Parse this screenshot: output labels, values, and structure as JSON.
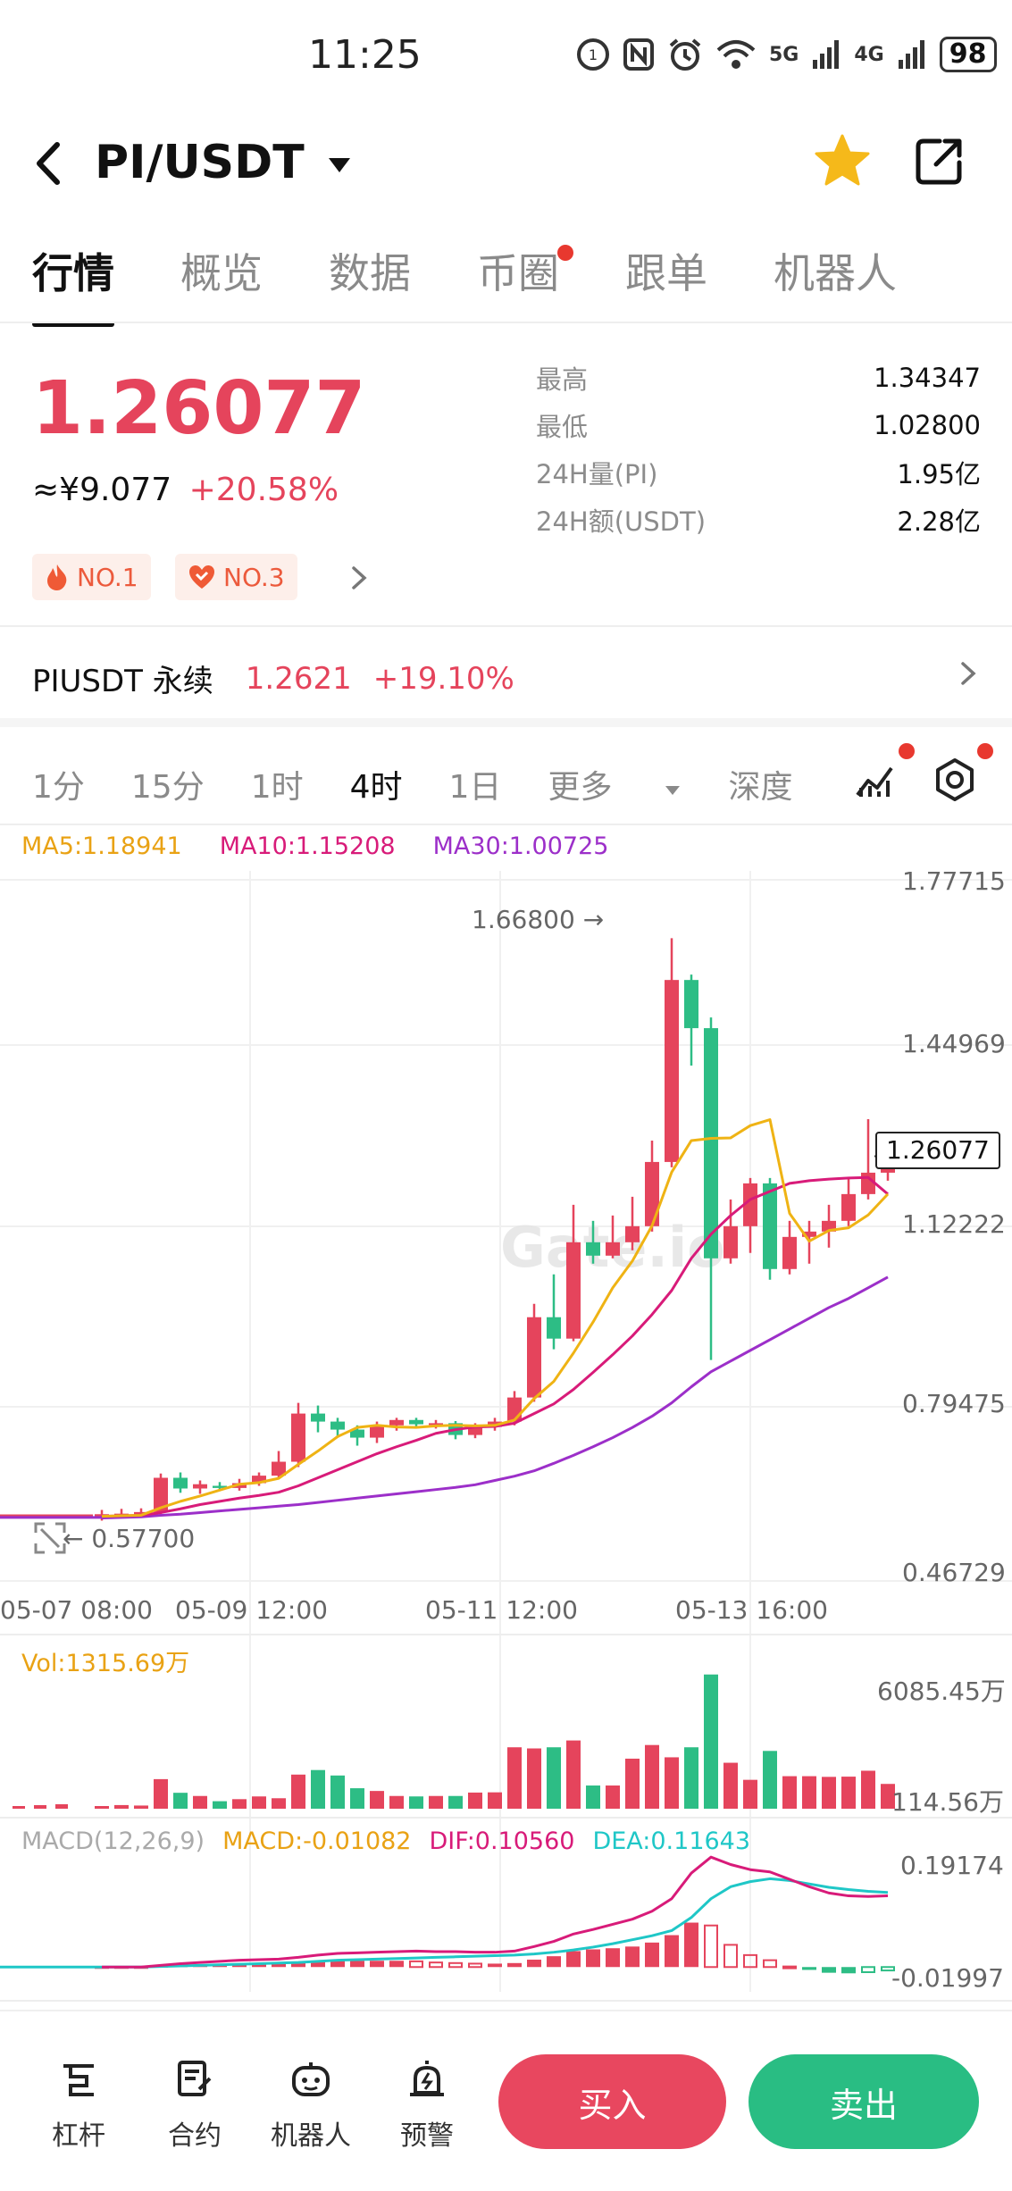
{
  "status": {
    "time": "11:25",
    "battery": "98",
    "net1": "5G",
    "net2": "4G"
  },
  "header": {
    "pair": "PI/USDT",
    "back_icon": "back-arrow-icon",
    "star_icon": "star-icon",
    "share_icon": "share-icon"
  },
  "tabs": [
    {
      "label": "行情",
      "active": true
    },
    {
      "label": "概览"
    },
    {
      "label": "数据"
    },
    {
      "label": "币圈",
      "dot": true
    },
    {
      "label": "跟单"
    },
    {
      "label": "机器人"
    }
  ],
  "ticker": {
    "last": "1.26077",
    "cny": "≈¥9.077",
    "change": "+20.58%",
    "high_label": "最高",
    "high": "1.34347",
    "low_label": "最低",
    "low": "1.02800",
    "vol_label": "24H量(PI)",
    "vol": "1.95亿",
    "amt_label": "24H额(USDT)",
    "amt": "2.28亿",
    "badge1": "NO.1",
    "badge2": "NO.3"
  },
  "perp": {
    "name": "PIUSDT 永续",
    "price": "1.2621",
    "change": "+19.10%"
  },
  "intervals": [
    "1分",
    "15分",
    "1时",
    "4时",
    "1日",
    "更多",
    "深度"
  ],
  "indicators": {
    "ma5": "MA5:1.18941",
    "ma10": "MA10:1.15208",
    "ma30": "MA30:1.00725"
  },
  "colors": {
    "up": "#e5445c",
    "down": "#2dbd85",
    "ma5": "#efb314",
    "ma10": "#d81b79",
    "ma30": "#9c2fc9",
    "dif": "#d81b79",
    "dea": "#1fc7c7"
  },
  "chart_data": {
    "type": "candlestick",
    "price_axis": [
      "1.77715",
      "1.44969",
      "1.12222",
      "0.79475",
      "0.46729"
    ],
    "ylim": [
      0.46729,
      1.77715
    ],
    "time_labels": [
      "05-07 08:00",
      "05-09 12:00",
      "05-11 12:00",
      "05-13 16:00"
    ],
    "high_mark": "1.66800 →",
    "low_mark": "← 0.57700",
    "current_price": "1.26077",
    "candles": [
      [
        0.588,
        0.592,
        0.6,
        0.58
      ],
      [
        0.59,
        0.593,
        0.602,
        0.585
      ],
      [
        0.59,
        0.596,
        0.603,
        0.586
      ],
      [
        0.596,
        0.66,
        0.668,
        0.59
      ],
      [
        0.66,
        0.64,
        0.67,
        0.632
      ],
      [
        0.64,
        0.648,
        0.655,
        0.63
      ],
      [
        0.645,
        0.641,
        0.652,
        0.635
      ],
      [
        0.641,
        0.65,
        0.658,
        0.636
      ],
      [
        0.65,
        0.664,
        0.67,
        0.645
      ],
      [
        0.664,
        0.69,
        0.71,
        0.66
      ],
      [
        0.69,
        0.78,
        0.8,
        0.68
      ],
      [
        0.78,
        0.765,
        0.795,
        0.745
      ],
      [
        0.765,
        0.75,
        0.772,
        0.735
      ],
      [
        0.75,
        0.735,
        0.758,
        0.72
      ],
      [
        0.735,
        0.758,
        0.765,
        0.725
      ],
      [
        0.758,
        0.768,
        0.772,
        0.748
      ],
      [
        0.768,
        0.76,
        0.772,
        0.752
      ],
      [
        0.76,
        0.762,
        0.768,
        0.752
      ],
      [
        0.762,
        0.74,
        0.766,
        0.732
      ],
      [
        0.74,
        0.755,
        0.762,
        0.734
      ],
      [
        0.755,
        0.765,
        0.772,
        0.748
      ],
      [
        0.765,
        0.81,
        0.822,
        0.758
      ],
      [
        0.81,
        0.96,
        0.985,
        0.802
      ],
      [
        0.96,
        0.92,
        1.04,
        0.9
      ],
      [
        0.92,
        1.1,
        1.17,
        0.915
      ],
      [
        1.1,
        1.075,
        1.14,
        1.06
      ],
      [
        1.075,
        1.1,
        1.15,
        1.07
      ],
      [
        1.1,
        1.13,
        1.185,
        1.085
      ],
      [
        1.13,
        1.25,
        1.29,
        1.12
      ],
      [
        1.25,
        1.59,
        1.668,
        1.24
      ],
      [
        1.59,
        1.5,
        1.6,
        1.43
      ],
      [
        1.5,
        1.07,
        1.52,
        0.88
      ],
      [
        1.07,
        1.13,
        1.18,
        1.06
      ],
      [
        1.13,
        1.21,
        1.22,
        1.08
      ],
      [
        1.21,
        1.05,
        1.22,
        1.03
      ],
      [
        1.05,
        1.11,
        1.14,
        1.04
      ],
      [
        1.11,
        1.12,
        1.14,
        1.06
      ],
      [
        1.12,
        1.14,
        1.17,
        1.09
      ],
      [
        1.14,
        1.19,
        1.22,
        1.13
      ],
      [
        1.19,
        1.23,
        1.33,
        1.18
      ],
      [
        1.23,
        1.261,
        1.3,
        1.215
      ]
    ],
    "ma5": [
      0.588,
      0.589,
      0.59,
      0.604,
      0.616,
      0.626,
      0.637,
      0.648,
      0.651,
      0.659,
      0.685,
      0.71,
      0.737,
      0.754,
      0.758,
      0.755,
      0.754,
      0.757,
      0.758,
      0.757,
      0.758,
      0.768,
      0.808,
      0.84,
      0.893,
      0.951,
      1.015,
      1.065,
      1.131,
      1.231,
      1.29,
      1.294,
      1.295,
      1.318,
      1.329,
      1.154,
      1.102,
      1.122,
      1.127,
      1.151,
      1.19
    ],
    "ma10": [
      0.588,
      0.589,
      0.59,
      0.595,
      0.602,
      0.61,
      0.616,
      0.622,
      0.627,
      0.633,
      0.645,
      0.66,
      0.675,
      0.69,
      0.705,
      0.718,
      0.73,
      0.743,
      0.75,
      0.755,
      0.756,
      0.762,
      0.78,
      0.798,
      0.825,
      0.857,
      0.89,
      0.925,
      0.965,
      1.01,
      1.07,
      1.115,
      1.15,
      1.18,
      1.195,
      1.21,
      1.215,
      1.218,
      1.22,
      1.221,
      1.19
    ],
    "ma30": [
      0.585,
      0.586,
      0.587,
      0.59,
      0.592,
      0.595,
      0.598,
      0.601,
      0.604,
      0.607,
      0.61,
      0.614,
      0.618,
      0.622,
      0.626,
      0.63,
      0.634,
      0.638,
      0.642,
      0.647,
      0.655,
      0.663,
      0.673,
      0.687,
      0.702,
      0.718,
      0.735,
      0.754,
      0.775,
      0.8,
      0.83,
      0.858,
      0.878,
      0.898,
      0.918,
      0.938,
      0.958,
      0.978,
      0.995,
      1.015,
      1.035
    ],
    "volume": {
      "label": "Vol:1315.69万",
      "axis": [
        "6085.45万",
        "114.56万"
      ],
      "max": 6085.45,
      "values": [
        110,
        160,
        140,
        1300,
        700,
        560,
        330,
        420,
        540,
        460,
        1500,
        1700,
        1460,
        900,
        780,
        560,
        540,
        560,
        560,
        710,
        720,
        2700,
        2650,
        2700,
        3000,
        1020,
        1020,
        2200,
        2800,
        2260,
        2700,
        5900,
        2020,
        1270,
        2540,
        1430,
        1430,
        1400,
        1410,
        1670,
        1090
      ]
    },
    "macd": {
      "label": "MACD(12,26,9)",
      "macd_text": "MACD:-0.01082",
      "dif_text": "DIF:0.10560",
      "dea_text": "DEA:0.11643",
      "axis": [
        "0.19174",
        "-0.01997"
      ],
      "ylim": [
        -0.01997,
        0.19174
      ],
      "dif": [
        0.0,
        0.0,
        0.0,
        0.003,
        0.006,
        0.008,
        0.01,
        0.012,
        0.013,
        0.014,
        0.017,
        0.021,
        0.024,
        0.025,
        0.026,
        0.027,
        0.028,
        0.027,
        0.027,
        0.026,
        0.026,
        0.028,
        0.036,
        0.045,
        0.058,
        0.066,
        0.075,
        0.084,
        0.098,
        0.12,
        0.165,
        0.193,
        0.18,
        0.171,
        0.167,
        0.154,
        0.141,
        0.13,
        0.125,
        0.124,
        0.125
      ],
      "dea": [
        0.0,
        0.0,
        0.0,
        0.001,
        0.002,
        0.003,
        0.004,
        0.005,
        0.006,
        0.007,
        0.008,
        0.01,
        0.012,
        0.013,
        0.014,
        0.015,
        0.016,
        0.017,
        0.018,
        0.019,
        0.02,
        0.021,
        0.023,
        0.026,
        0.03,
        0.035,
        0.041,
        0.048,
        0.055,
        0.064,
        0.087,
        0.12,
        0.141,
        0.15,
        0.155,
        0.152,
        0.146,
        0.14,
        0.136,
        0.133,
        0.131
      ],
      "hist": [
        0.0,
        0.0,
        0.0,
        0.002,
        0.003,
        0.004,
        0.005,
        0.006,
        0.006,
        0.006,
        0.008,
        0.01,
        0.011,
        0.011,
        0.011,
        0.011,
        0.01,
        0.008,
        0.007,
        0.006,
        0.006,
        0.007,
        0.013,
        0.019,
        0.028,
        0.031,
        0.033,
        0.036,
        0.043,
        0.056,
        0.078,
        0.073,
        0.039,
        0.021,
        0.012,
        0.001,
        -0.005,
        -0.01,
        -0.011,
        -0.009,
        -0.006
      ]
    }
  },
  "bottom": {
    "nav": [
      {
        "label": "杠杆",
        "icon": "leverage-icon"
      },
      {
        "label": "合约",
        "icon": "contract-icon"
      },
      {
        "label": "机器人",
        "icon": "robot-icon"
      },
      {
        "label": "预警",
        "icon": "alert-icon"
      }
    ],
    "buy": "买入",
    "sell": "卖出"
  }
}
